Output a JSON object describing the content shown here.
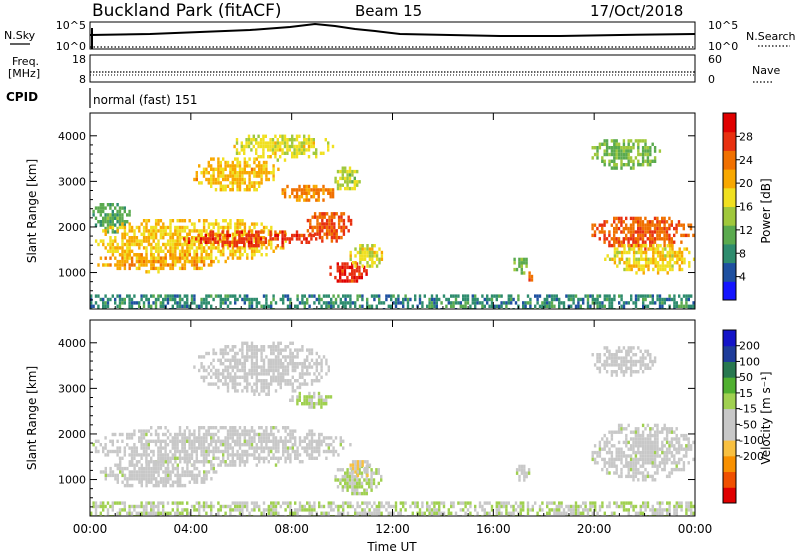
{
  "header": {
    "station": "Buckland Park (fitACF)",
    "beam": "Beam 15",
    "date": "17/Oct/2018"
  },
  "status_panel": {
    "nsky_label": "N.Sky",
    "nsky_ticks": [
      "10^5",
      "10^0"
    ],
    "nsearch_label": "N.Search",
    "nsearch_ticks": [
      "10^5",
      "10^0"
    ],
    "freq_label": "Freq.",
    "freq_unit": "[MHz]",
    "freq_ticks": [
      "18",
      "8"
    ],
    "nave_label": "Nave",
    "nave_ticks": [
      "60",
      "0"
    ],
    "cpid_label": "CPID",
    "cpid_value": "normal (fast) 151"
  },
  "colors": {
    "power": [
      "#1414ff",
      "#1e50a0",
      "#2e8c6e",
      "#5aaa4e",
      "#a0c83c",
      "#f0e020",
      "#f8a800",
      "#f07000",
      "#e83010",
      "#e00000"
    ],
    "velocity": [
      "#e00000",
      "#f05000",
      "#f89000",
      "#f8c040",
      "#c8c8c8",
      "#c8c8c8",
      "#a0d050",
      "#50b030",
      "#287850",
      "#1e3c9a",
      "#1414c8"
    ]
  },
  "chart_data": [
    {
      "type": "heatmap",
      "name": "power",
      "ylabel": "Slant Range [km]",
      "yticks": [
        "4000",
        "3000",
        "2000",
        "1000"
      ],
      "ylim": [
        200,
        4500
      ],
      "xlim": [
        0,
        24
      ],
      "xticks": [
        "00:00",
        "04:00",
        "08:00",
        "12:00",
        "16:00",
        "20:00",
        "00:00"
      ],
      "colorbar": {
        "label": "Power [dB]",
        "range": [
          0,
          32
        ],
        "ticks": [
          "28",
          "24",
          "20",
          "16",
          "12",
          "8",
          "4"
        ]
      },
      "regions": [
        {
          "t": [
            0.0,
            1.6
          ],
          "r": [
            1900,
            2600
          ],
          "v": 11
        },
        {
          "t": [
            0.1,
            7.9
          ],
          "r": [
            1250,
            2250
          ],
          "v": 19
        },
        {
          "t": [
            0.1,
            5.0
          ],
          "r": [
            1050,
            1500
          ],
          "v": 21
        },
        {
          "t": [
            3.5,
            9.0
          ],
          "r": [
            1600,
            2000
          ],
          "v": 27
        },
        {
          "t": [
            4.0,
            7.5
          ],
          "r": [
            2800,
            3600
          ],
          "v": 20
        },
        {
          "t": [
            5.5,
            9.6
          ],
          "r": [
            3500,
            4100
          ],
          "v": 17
        },
        {
          "t": [
            7.5,
            9.8
          ],
          "r": [
            2600,
            3000
          ],
          "v": 23
        },
        {
          "t": [
            8.5,
            10.4
          ],
          "r": [
            1700,
            2400
          ],
          "v": 26
        },
        {
          "t": [
            9.6,
            10.7
          ],
          "r": [
            2800,
            3400
          ],
          "v": 15
        },
        {
          "t": [
            9.4,
            11.0
          ],
          "r": [
            800,
            1300
          ],
          "v": 28
        },
        {
          "t": [
            10.2,
            11.6
          ],
          "r": [
            1100,
            1700
          ],
          "v": 17
        },
        {
          "t": [
            16.7,
            17.4
          ],
          "r": [
            1000,
            1400
          ],
          "v": 12
        },
        {
          "t": [
            17.2,
            17.6
          ],
          "r": [
            850,
            1100
          ],
          "v": 25
        },
        {
          "t": [
            19.7,
            24.0
          ],
          "r": [
            1550,
            2300
          ],
          "v": 25
        },
        {
          "t": [
            20.3,
            24.0
          ],
          "r": [
            1000,
            1700
          ],
          "v": 18
        },
        {
          "t": [
            19.8,
            22.6
          ],
          "r": [
            3300,
            4000
          ],
          "v": 13
        },
        {
          "t": [
            0.0,
            24.0
          ],
          "r": [
            200,
            520
          ],
          "v": 8
        }
      ]
    },
    {
      "type": "heatmap",
      "name": "velocity",
      "ylabel": "Slant Range [km]",
      "yticks": [
        "4000",
        "3000",
        "2000",
        "1000"
      ],
      "ylim": [
        200,
        4500
      ],
      "xlim": [
        0,
        24
      ],
      "xlabel": "Time UT",
      "xticks": [
        "00:00",
        "04:00",
        "08:00",
        "12:00",
        "16:00",
        "20:00",
        "00:00"
      ],
      "colorbar": {
        "label": "Velocity [m s⁻¹]",
        "range": [
          -250,
          250
        ],
        "ticks": [
          "200",
          "100",
          "50",
          "15",
          "-15",
          "-50",
          "-100",
          "-200"
        ]
      },
      "regions": [
        {
          "t": [
            0.0,
            10.3
          ],
          "r": [
            1300,
            2250
          ],
          "v": 0
        },
        {
          "t": [
            0.2,
            5.0
          ],
          "r": [
            850,
            1500
          ],
          "v": 0
        },
        {
          "t": [
            4.0,
            9.5
          ],
          "r": [
            2900,
            4100
          ],
          "v": -40
        },
        {
          "t": [
            7.8,
            9.6
          ],
          "r": [
            2600,
            3000
          ],
          "v": 30
        },
        {
          "t": [
            9.6,
            11.6
          ],
          "r": [
            700,
            1400
          ],
          "v": 20
        },
        {
          "t": [
            10.2,
            11.3
          ],
          "r": [
            1100,
            1500
          ],
          "v": -60
        },
        {
          "t": [
            16.8,
            17.4
          ],
          "r": [
            950,
            1400
          ],
          "v": 0
        },
        {
          "t": [
            19.8,
            24.0
          ],
          "r": [
            1000,
            2300
          ],
          "v": 0
        },
        {
          "t": [
            19.8,
            22.4
          ],
          "r": [
            3300,
            4000
          ],
          "v": -30
        },
        {
          "t": [
            0.0,
            24.0
          ],
          "r": [
            200,
            520
          ],
          "v": 20
        }
      ]
    }
  ]
}
